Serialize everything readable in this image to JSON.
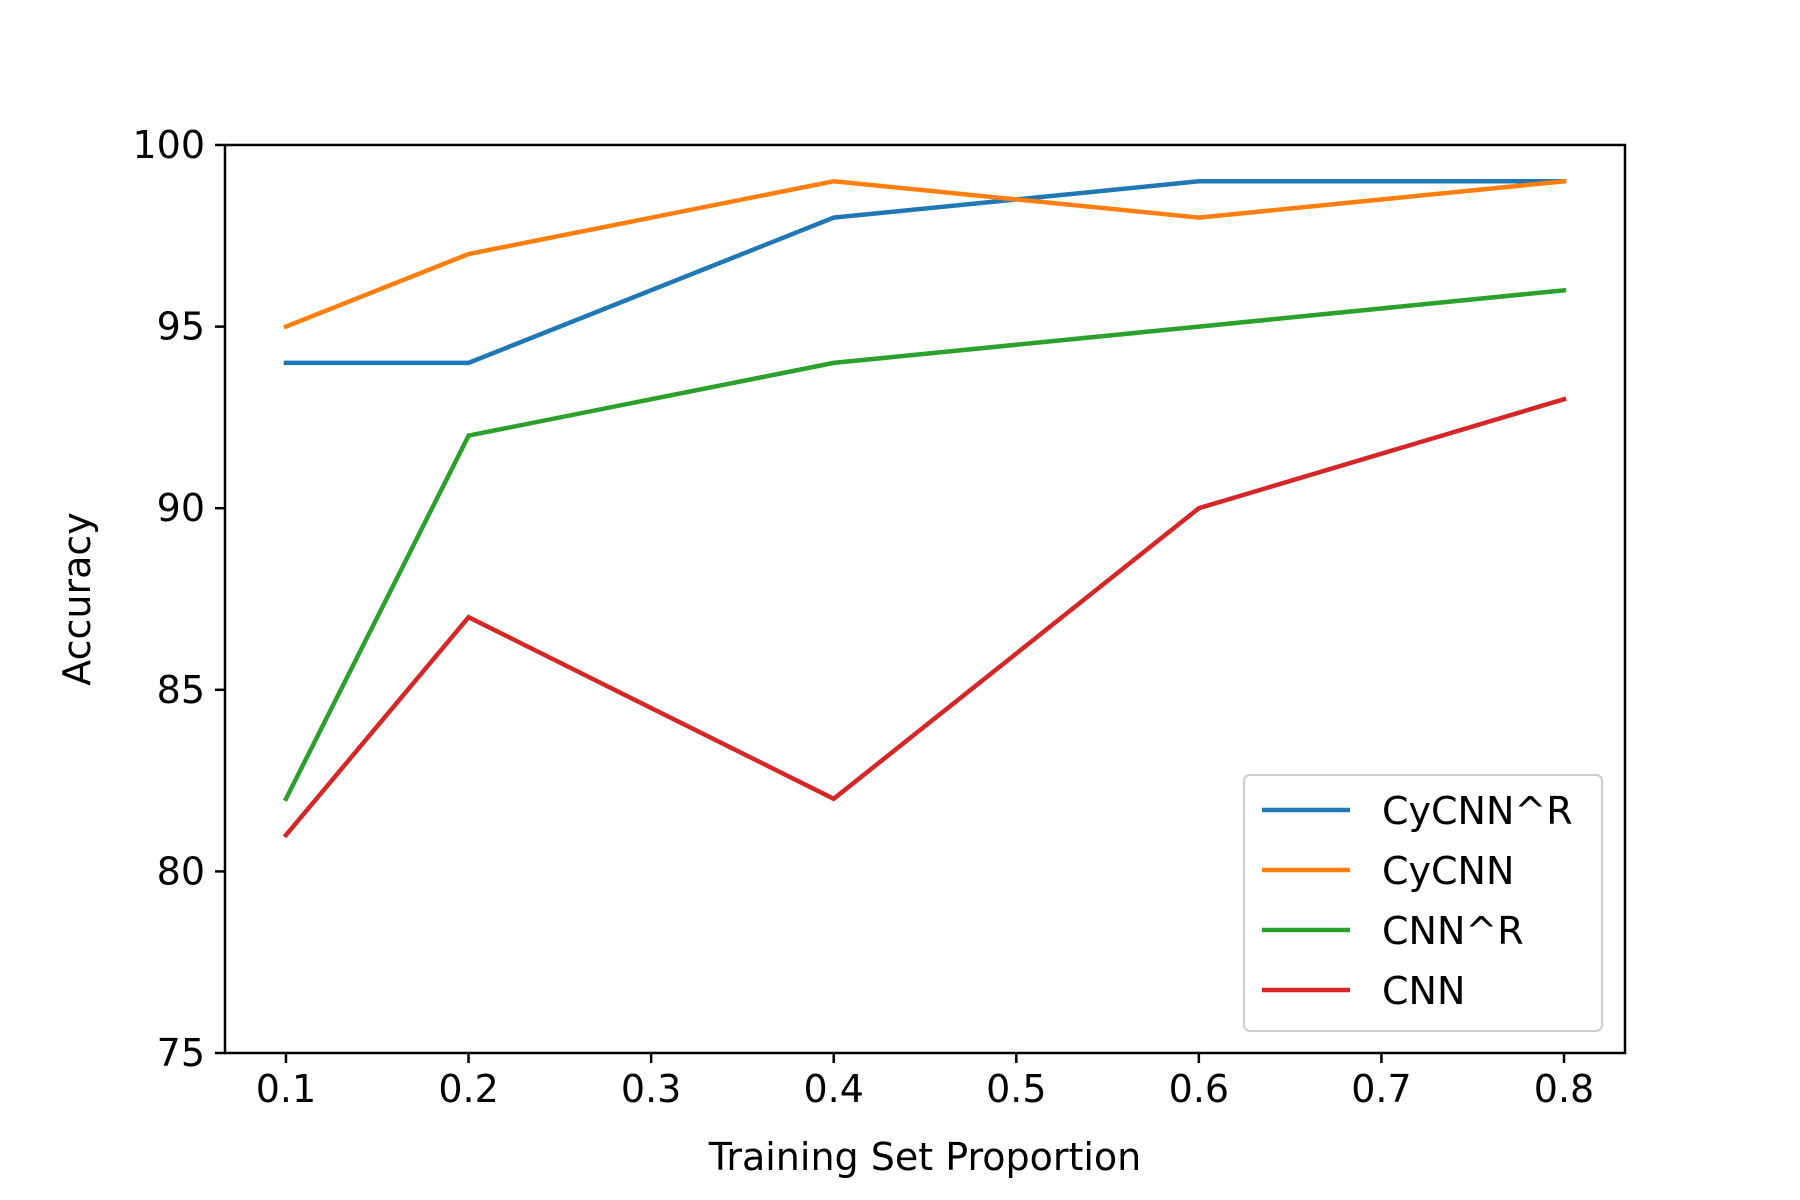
{
  "chart_data": {
    "type": "line",
    "title": "",
    "xlabel": "Training Set Proportion",
    "ylabel": "Accuracy",
    "x": [
      0.1,
      0.2,
      0.4,
      0.6,
      0.8
    ],
    "xlim": [
      0.0666,
      0.8334
    ],
    "ylim": [
      75,
      100
    ],
    "xticks": [
      0.1,
      0.2,
      0.3,
      0.4,
      0.5,
      0.6,
      0.7,
      0.8
    ],
    "xtick_labels": [
      "0.1",
      "0.2",
      "0.3",
      "0.4",
      "0.5",
      "0.6",
      "0.7",
      "0.8"
    ],
    "yticks": [
      75,
      80,
      85,
      90,
      95,
      100
    ],
    "ytick_labels": [
      "75",
      "80",
      "85",
      "90",
      "95",
      "100"
    ],
    "grid": false,
    "legend_position": "lower-right",
    "series": [
      {
        "name": "CyCNN^R",
        "color": "#1f77b4",
        "values": [
          94,
          94,
          98,
          99,
          99
        ]
      },
      {
        "name": "CyCNN",
        "color": "#ff7f0e",
        "values": [
          95,
          97,
          99,
          98,
          99
        ]
      },
      {
        "name": "CNN^R",
        "color": "#2ca02c",
        "values": [
          82,
          92,
          94,
          95,
          96
        ]
      },
      {
        "name": "CNN",
        "color": "#d62728",
        "values": [
          81,
          87,
          82,
          90,
          93
        ]
      }
    ]
  }
}
